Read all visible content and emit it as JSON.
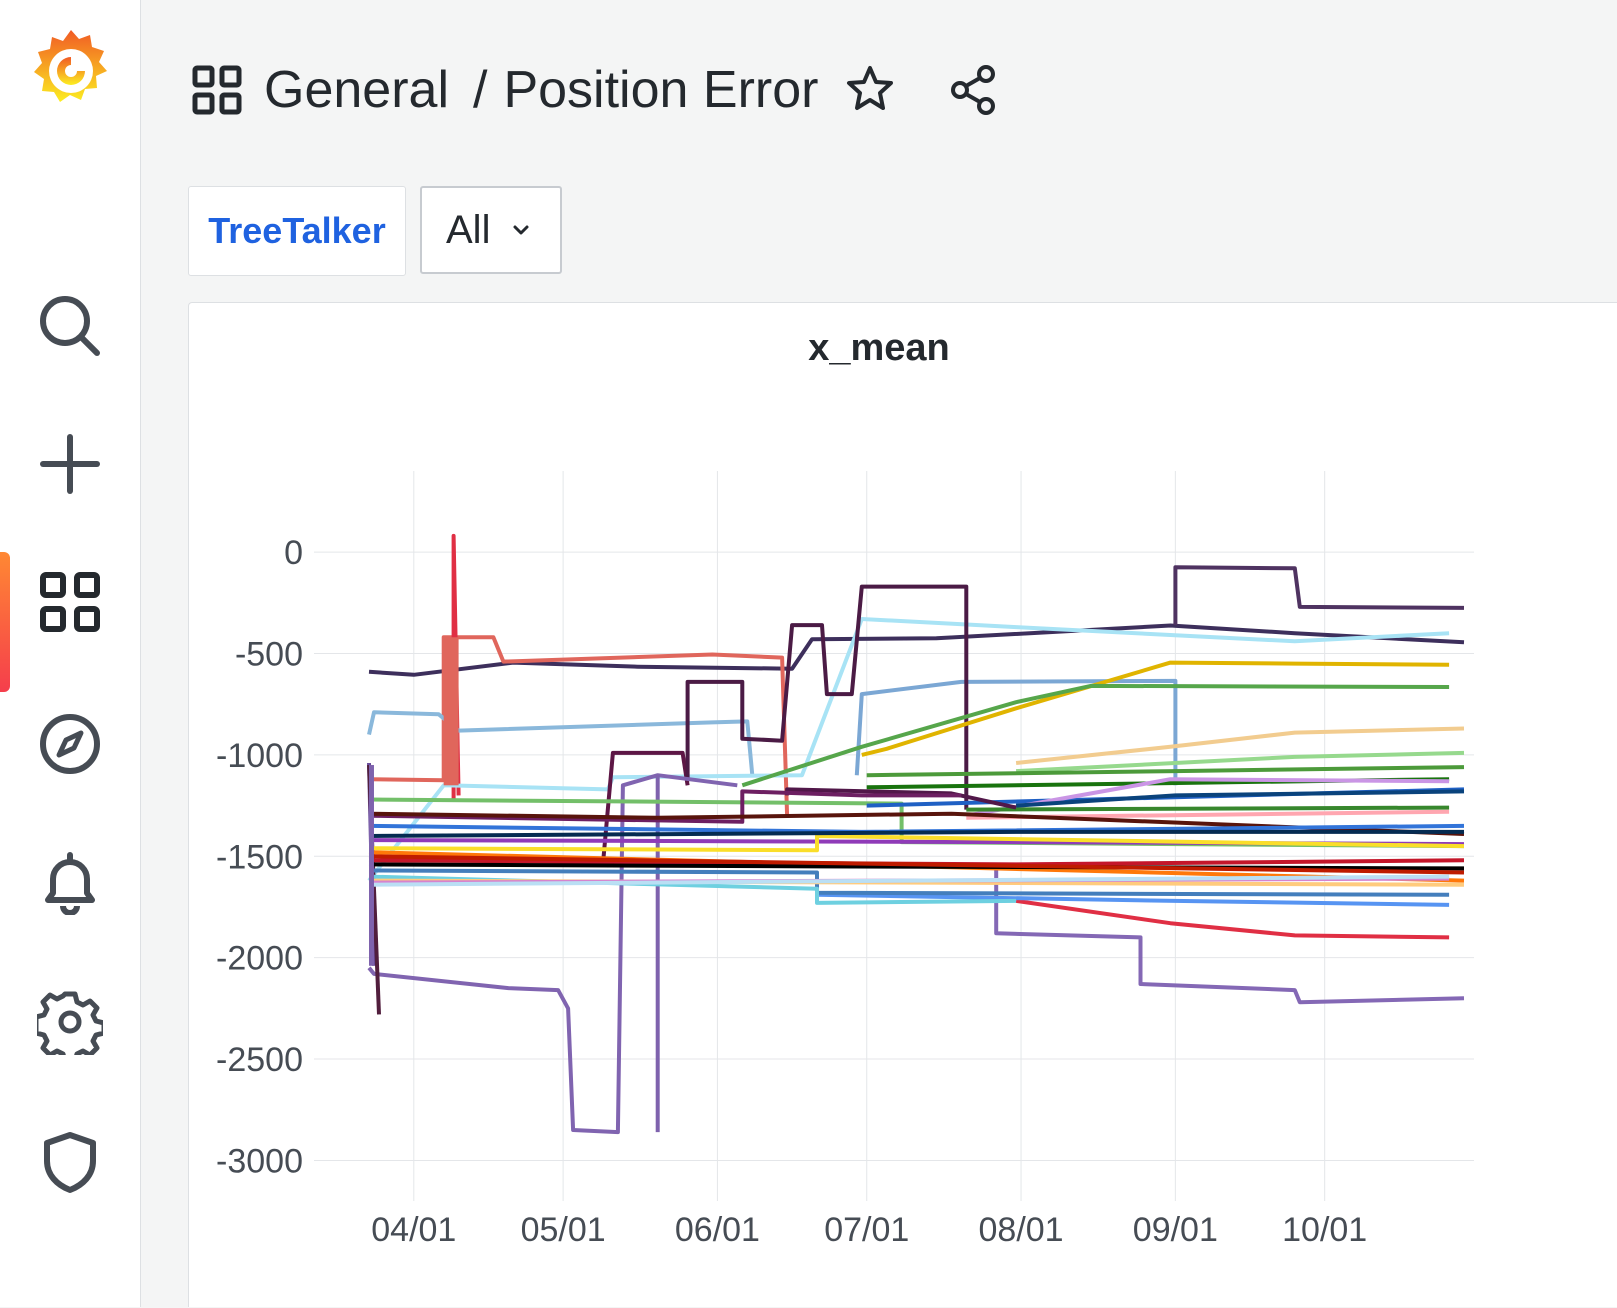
{
  "sidebar": {
    "items": [
      {
        "name": "search",
        "icon": "search-icon"
      },
      {
        "name": "create",
        "icon": "plus-icon"
      },
      {
        "name": "dashboards",
        "icon": "apps-icon",
        "active": true
      },
      {
        "name": "explore",
        "icon": "compass-icon"
      },
      {
        "name": "alerting",
        "icon": "bell-icon"
      },
      {
        "name": "configuration",
        "icon": "gear-icon"
      },
      {
        "name": "server-admin",
        "icon": "shield-icon"
      }
    ],
    "accent_gradient": [
      "#ff8833",
      "#f53e4c"
    ]
  },
  "header": {
    "folder": "General",
    "separator": "/",
    "title": "Position Error"
  },
  "variables": {
    "label": "TreeTalker",
    "selected": "All"
  },
  "panel": {
    "title": "x_mean"
  },
  "chart_data": {
    "type": "line",
    "title": "x_mean",
    "x_ticks": [
      "04/01",
      "05/01",
      "06/01",
      "07/01",
      "08/01",
      "09/01",
      "10/01"
    ],
    "y_ticks": [
      "0",
      "-500",
      "-1000",
      "-1500",
      "-2000",
      "-2500",
      "-3000"
    ],
    "ylim": [
      -3200,
      400
    ],
    "xlim": [
      "03-23",
      "10-31"
    ],
    "grid": true,
    "legend": "none",
    "series": [
      {
        "color": "#3d2f5c",
        "points": [
          [
            "03-23",
            -590
          ],
          [
            "04-01",
            -605
          ],
          [
            "04-21",
            -545
          ],
          [
            "05-16",
            -565
          ],
          [
            "06-16",
            -575
          ],
          [
            "06-20",
            -430
          ],
          [
            "07-15",
            -425
          ],
          [
            "08-31",
            -362
          ],
          [
            "09-25",
            -400
          ],
          [
            "10-29",
            -445
          ]
        ]
      },
      {
        "color": "#4f3361",
        "points": [
          [
            "09-01",
            -360
          ],
          [
            "09-01",
            -75
          ],
          [
            "09-25",
            -80
          ],
          [
            "09-26",
            -270
          ],
          [
            "10-29",
            -275
          ]
        ]
      },
      {
        "color": "#e0665c",
        "points": [
          [
            "03-23",
            -1120
          ],
          [
            "04-07",
            -1125
          ],
          [
            "04-07",
            -420
          ],
          [
            "04-17",
            -420
          ],
          [
            "04-19",
            -540
          ],
          [
            "05-31",
            -505
          ],
          [
            "06-14",
            -520
          ],
          [
            "06-15",
            -1300
          ]
        ]
      },
      {
        "color": "#e02f44",
        "points": [
          [
            "04-09",
            -1220
          ],
          [
            "04-09",
            80
          ],
          [
            "04-10",
            -1200
          ]
        ]
      },
      {
        "color": "#8ab8db",
        "points": [
          [
            "03-23",
            -900
          ],
          [
            "03-24",
            -790
          ],
          [
            "04-06",
            -800
          ],
          [
            "04-10",
            -880
          ],
          [
            "05-31",
            -840
          ],
          [
            "06-07",
            -835
          ],
          [
            "06-08",
            -1100
          ]
        ]
      },
      {
        "color": "#a8e3f5",
        "points": [
          [
            "03-23",
            -1620
          ],
          [
            "04-07",
            -1150
          ],
          [
            "05-10",
            -1170
          ],
          [
            "05-11",
            -1110
          ],
          [
            "06-18",
            -1100
          ],
          [
            "06-30",
            -330
          ],
          [
            "07-31",
            -370
          ],
          [
            "09-25",
            -440
          ],
          [
            "10-26",
            -400
          ]
        ]
      },
      {
        "color": "#7ba7d4",
        "points": [
          [
            "06-29",
            -1100
          ],
          [
            "06-30",
            -700
          ],
          [
            "07-20",
            -640
          ],
          [
            "09-01",
            -635
          ],
          [
            "09-01",
            -1150
          ]
        ]
      },
      {
        "color": "#5d1645",
        "points": [
          [
            "05-09",
            -1540
          ],
          [
            "05-11",
            -990
          ],
          [
            "05-25",
            -990
          ],
          [
            "05-26",
            -1150
          ]
        ]
      },
      {
        "color": "#4b1b45",
        "points": [
          [
            "05-26",
            -1130
          ],
          [
            "05-26",
            -640
          ],
          [
            "06-06",
            -640
          ],
          [
            "06-06",
            -920
          ],
          [
            "06-14",
            -930
          ],
          [
            "06-16",
            -360
          ],
          [
            "06-22",
            -360
          ],
          [
            "06-23",
            -700
          ],
          [
            "06-28",
            -700
          ],
          [
            "06-30",
            -170
          ],
          [
            "07-21",
            -170
          ],
          [
            "07-21",
            -1270
          ]
        ]
      },
      {
        "color": "#8064b0",
        "points": [
          [
            "03-23",
            -2050
          ],
          [
            "03-24",
            -2080
          ],
          [
            "04-20",
            -2150
          ],
          [
            "04-30",
            -2160
          ],
          [
            "05-02",
            -2250
          ],
          [
            "05-03",
            -2850
          ],
          [
            "05-12",
            -2860
          ],
          [
            "05-13",
            -1150
          ],
          [
            "05-20",
            -1100
          ],
          [
            "06-05",
            -1150
          ]
        ]
      },
      {
        "color": "#7e62ad",
        "points": [
          [
            "05-20",
            -2860
          ],
          [
            "05-20",
            -1100
          ]
        ]
      },
      {
        "color": "#8468b5",
        "points": [
          [
            "07-27",
            -1560
          ],
          [
            "07-27",
            -1880
          ],
          [
            "08-25",
            -1900
          ],
          [
            "08-25",
            -2130
          ],
          [
            "09-25",
            -2160
          ],
          [
            "09-26",
            -2220
          ],
          [
            "10-29",
            -2200
          ]
        ]
      },
      {
        "color": "#6b4f9e",
        "points": [
          [
            "03-23",
            -1040
          ],
          [
            "03-24",
            -2040
          ]
        ]
      },
      {
        "color": "#511e3d",
        "points": [
          [
            "03-23",
            -1050
          ],
          [
            "03-25",
            -2280
          ]
        ]
      },
      {
        "color": "#e0b400",
        "points": [
          [
            "06-30",
            -1000
          ],
          [
            "07-05",
            -970
          ],
          [
            "07-31",
            -770
          ],
          [
            "08-31",
            -545
          ],
          [
            "09-25",
            -550
          ],
          [
            "10-26",
            -555
          ]
        ]
      },
      {
        "color": "#56a64b",
        "points": [
          [
            "06-06",
            -1150
          ],
          [
            "06-30",
            -960
          ],
          [
            "07-31",
            -740
          ],
          [
            "08-15",
            -660
          ],
          [
            "10-26",
            -665
          ]
        ]
      },
      {
        "color": "#f2cc8f",
        "points": [
          [
            "07-31",
            -1040
          ],
          [
            "08-31",
            -960
          ],
          [
            "09-25",
            -890
          ],
          [
            "10-29",
            -870
          ]
        ]
      },
      {
        "color": "#96d98d",
        "points": [
          [
            "07-31",
            -1080
          ],
          [
            "09-25",
            -1010
          ],
          [
            "10-29",
            -990
          ]
        ]
      },
      {
        "color": "#4c9a3a",
        "points": [
          [
            "07-01",
            -1100
          ],
          [
            "09-01",
            -1080
          ],
          [
            "10-29",
            -1060
          ]
        ]
      },
      {
        "color": "#73bf69",
        "points": [
          [
            "03-23",
            -1220
          ],
          [
            "07-08",
            -1240
          ],
          [
            "07-08",
            -1430
          ],
          [
            "10-29",
            -1450
          ]
        ]
      },
      {
        "color": "#19730e",
        "points": [
          [
            "07-01",
            -1160
          ],
          [
            "10-26",
            -1120
          ]
        ]
      },
      {
        "color": "#1f60c4",
        "points": [
          [
            "07-01",
            -1250
          ],
          [
            "08-15",
            -1220
          ],
          [
            "10-29",
            -1170
          ]
        ]
      },
      {
        "color": "#ca95e5",
        "points": [
          [
            "07-21",
            -1300
          ],
          [
            "08-31",
            -1120
          ],
          [
            "10-26",
            -1130
          ]
        ]
      },
      {
        "color": "#37872d",
        "points": [
          [
            "07-21",
            -1270
          ],
          [
            "10-26",
            -1260
          ]
        ]
      },
      {
        "color": "#ffa6b0",
        "points": [
          [
            "07-21",
            -1310
          ],
          [
            "10-26",
            -1280
          ]
        ]
      },
      {
        "color": "#0a437c",
        "points": [
          [
            "07-31",
            -1250
          ],
          [
            "09-01",
            -1200
          ],
          [
            "10-29",
            -1180
          ]
        ]
      },
      {
        "color": "#511749",
        "points": [
          [
            "06-15",
            -1200
          ],
          [
            "06-15",
            -1170
          ],
          [
            "07-18",
            -1190
          ],
          [
            "07-31",
            -1260
          ]
        ]
      },
      {
        "color": "#6d1f62",
        "points": [
          [
            "03-23",
            -1300
          ],
          [
            "06-06",
            -1330
          ],
          [
            "06-06",
            -1180
          ],
          [
            "06-30",
            -1200
          ],
          [
            "07-20",
            -1200
          ]
        ]
      },
      {
        "color": "#58140c",
        "points": [
          [
            "03-23",
            -1290
          ],
          [
            "05-20",
            -1310
          ],
          [
            "07-18",
            -1290
          ],
          [
            "10-29",
            -1390
          ]
        ]
      },
      {
        "color": "#3274d9",
        "points": [
          [
            "03-23",
            -1350
          ],
          [
            "06-30",
            -1380
          ],
          [
            "10-29",
            -1350
          ]
        ]
      },
      {
        "color": "#8f3bb8",
        "points": [
          [
            "03-23",
            -1420
          ],
          [
            "07-31",
            -1430
          ],
          [
            "10-29",
            -1440
          ]
        ]
      },
      {
        "color": "#fade2a",
        "points": [
          [
            "03-23",
            -1460
          ],
          [
            "06-21",
            -1470
          ],
          [
            "06-21",
            -1400
          ],
          [
            "10-29",
            -1450
          ]
        ]
      },
      {
        "color": "#ff780a",
        "points": [
          [
            "03-23",
            -1480
          ],
          [
            "10-29",
            -1620
          ]
        ]
      },
      {
        "color": "#c4162a",
        "points": [
          [
            "03-23",
            -1520
          ],
          [
            "07-31",
            -1540
          ],
          [
            "10-29",
            -1520
          ]
        ]
      },
      {
        "color": "#000000",
        "points": [
          [
            "03-23",
            -1540
          ],
          [
            "06-21",
            -1550
          ],
          [
            "10-29",
            -1560
          ]
        ]
      },
      {
        "color": "#e02f44",
        "points": [
          [
            "07-31",
            -1720
          ],
          [
            "08-31",
            -1830
          ],
          [
            "09-25",
            -1890
          ],
          [
            "10-26",
            -1900
          ]
        ]
      },
      {
        "color": "#5794f2",
        "points": [
          [
            "06-21",
            -1650
          ],
          [
            "06-21",
            -1690
          ],
          [
            "09-01",
            -1720
          ],
          [
            "10-26",
            -1740
          ]
        ]
      },
      {
        "color": "#447ebc",
        "points": [
          [
            "03-23",
            -1570
          ],
          [
            "06-21",
            -1580
          ],
          [
            "06-21",
            -1680
          ],
          [
            "10-26",
            -1690
          ]
        ]
      },
      {
        "color": "#6ed0e0",
        "points": [
          [
            "03-23",
            -1600
          ],
          [
            "06-21",
            -1660
          ],
          [
            "06-21",
            -1730
          ],
          [
            "07-31",
            -1720
          ]
        ]
      },
      {
        "color": "#ffcb7d",
        "points": [
          [
            "03-23",
            -1620
          ],
          [
            "10-29",
            -1640
          ]
        ]
      },
      {
        "color": "#d683ce",
        "points": [
          [
            "03-23",
            -1630
          ],
          [
            "10-26",
            -1610
          ]
        ]
      },
      {
        "color": "#badff4",
        "points": [
          [
            "03-23",
            -1640
          ],
          [
            "10-26",
            -1600
          ]
        ]
      },
      {
        "color": "#bf1b00",
        "points": [
          [
            "03-23",
            -1500
          ],
          [
            "10-29",
            -1580
          ]
        ]
      },
      {
        "color": "#052b51",
        "points": [
          [
            "03-23",
            -1400
          ],
          [
            "07-31",
            -1380
          ],
          [
            "10-29",
            -1380
          ]
        ]
      }
    ]
  }
}
